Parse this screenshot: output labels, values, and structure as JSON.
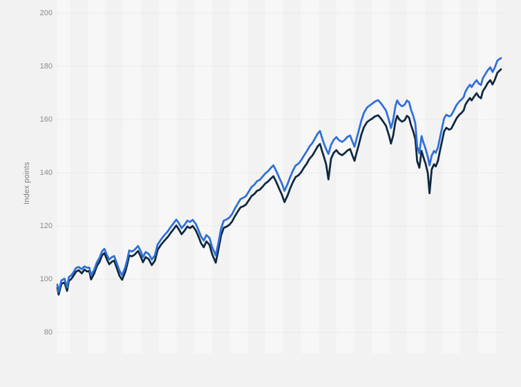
{
  "colors": {
    "background": "#f2f2f2",
    "stripe": "#f7f7f7",
    "gridline": "#c8c8c8",
    "tick_text": "#8a8a8a",
    "axis_title_text": "#7d7d7d",
    "series_blue": "#2f70d8",
    "series_navy": "#0f2940"
  },
  "chart_data": {
    "type": "line",
    "title": "",
    "xlabel": "",
    "ylabel": "Index points",
    "ylim": [
      80,
      200
    ],
    "yticks": [
      200,
      180,
      160,
      140,
      120,
      100,
      80
    ],
    "grid": "horizontal-dotted",
    "legend": "none",
    "x_axis_labels_visible": false,
    "x_range": [
      0,
      1
    ],
    "plot_background": "alternating-vertical-month-stripes",
    "series": [
      {
        "name": "series-1",
        "color": "#2f70d8",
        "end_value": 183.1,
        "start_value": 98.0
      },
      {
        "name": "series-2",
        "color": "#0f2940",
        "end_value": 178.9,
        "start_value": 96.8
      }
    ],
    "points": [
      [
        0.0,
        98.0,
        96.8
      ],
      [
        0.003,
        95.3,
        94.2
      ],
      [
        0.009,
        99.5,
        98.2
      ],
      [
        0.016,
        100.2,
        98.8
      ],
      [
        0.022,
        97.0,
        95.6
      ],
      [
        0.026,
        100.8,
        99.4
      ],
      [
        0.031,
        101.4,
        100.0
      ],
      [
        0.036,
        102.5,
        101.2
      ],
      [
        0.042,
        104.2,
        102.8
      ],
      [
        0.048,
        104.6,
        103.4
      ],
      [
        0.055,
        103.8,
        102.2
      ],
      [
        0.061,
        104.8,
        103.6
      ],
      [
        0.067,
        104.3,
        102.9
      ],
      [
        0.072,
        104.4,
        103.1
      ],
      [
        0.076,
        101.5,
        99.9
      ],
      [
        0.083,
        103.5,
        102.1
      ],
      [
        0.089,
        106.3,
        104.9
      ],
      [
        0.095,
        108.0,
        106.5
      ],
      [
        0.101,
        110.5,
        109.0
      ],
      [
        0.106,
        111.4,
        109.8
      ],
      [
        0.112,
        109.0,
        107.3
      ],
      [
        0.117,
        107.4,
        105.6
      ],
      [
        0.123,
        108.3,
        106.6
      ],
      [
        0.128,
        108.7,
        107.0
      ],
      [
        0.134,
        106.0,
        104.2
      ],
      [
        0.14,
        103.2,
        101.3
      ],
      [
        0.146,
        101.5,
        99.8
      ],
      [
        0.153,
        104.5,
        102.7
      ],
      [
        0.157,
        107.0,
        105.2
      ],
      [
        0.162,
        110.8,
        108.9
      ],
      [
        0.168,
        110.4,
        108.6
      ],
      [
        0.174,
        111.0,
        109.2
      ],
      [
        0.182,
        112.5,
        110.6
      ],
      [
        0.188,
        110.5,
        108.5
      ],
      [
        0.193,
        108.3,
        106.4
      ],
      [
        0.199,
        110.2,
        108.3
      ],
      [
        0.206,
        109.5,
        107.5
      ],
      [
        0.213,
        107.4,
        105.3
      ],
      [
        0.22,
        109.0,
        107.0
      ],
      [
        0.226,
        113.0,
        111.0
      ],
      [
        0.234,
        115.0,
        113.0
      ],
      [
        0.241,
        116.5,
        114.4
      ],
      [
        0.249,
        118.0,
        115.9
      ],
      [
        0.255,
        119.5,
        117.3
      ],
      [
        0.262,
        121.0,
        118.8
      ],
      [
        0.268,
        122.4,
        120.2
      ],
      [
        0.274,
        121.0,
        118.7
      ],
      [
        0.28,
        119.2,
        116.9
      ],
      [
        0.287,
        120.5,
        118.3
      ],
      [
        0.293,
        122.0,
        119.8
      ],
      [
        0.299,
        121.5,
        119.2
      ],
      [
        0.305,
        122.3,
        120.0
      ],
      [
        0.312,
        120.8,
        118.4
      ],
      [
        0.318,
        118.5,
        116.1
      ],
      [
        0.324,
        116.0,
        113.5
      ],
      [
        0.33,
        114.5,
        112.0
      ],
      [
        0.336,
        116.6,
        114.2
      ],
      [
        0.343,
        115.5,
        112.9
      ],
      [
        0.349,
        112.0,
        109.4
      ],
      [
        0.357,
        109.0,
        106.2
      ],
      [
        0.363,
        113.5,
        111.0
      ],
      [
        0.369,
        119.0,
        116.4
      ],
      [
        0.375,
        122.0,
        119.3
      ],
      [
        0.382,
        122.5,
        119.8
      ],
      [
        0.388,
        123.2,
        120.5
      ],
      [
        0.394,
        124.5,
        121.7
      ],
      [
        0.4,
        126.5,
        123.6
      ],
      [
        0.407,
        128.5,
        125.5
      ],
      [
        0.413,
        130.1,
        127.0
      ],
      [
        0.419,
        130.6,
        127.4
      ],
      [
        0.425,
        131.2,
        128.0
      ],
      [
        0.431,
        132.8,
        129.5
      ],
      [
        0.438,
        134.7,
        131.3
      ],
      [
        0.444,
        135.5,
        132.0
      ],
      [
        0.45,
        136.8,
        133.2
      ],
      [
        0.456,
        137.3,
        133.6
      ],
      [
        0.463,
        138.6,
        134.8
      ],
      [
        0.469,
        139.8,
        136.0
      ],
      [
        0.475,
        140.6,
        136.7
      ],
      [
        0.481,
        141.8,
        137.8
      ],
      [
        0.487,
        142.8,
        138.7
      ],
      [
        0.494,
        140.5,
        136.4
      ],
      [
        0.5,
        138.2,
        134.0
      ],
      [
        0.506,
        136.0,
        131.8
      ],
      [
        0.512,
        133.2,
        129.0
      ],
      [
        0.519,
        135.8,
        131.5
      ],
      [
        0.525,
        138.5,
        134.2
      ],
      [
        0.531,
        140.8,
        136.5
      ],
      [
        0.537,
        142.7,
        138.4
      ],
      [
        0.544,
        143.5,
        139.1
      ],
      [
        0.55,
        144.8,
        140.3
      ],
      [
        0.556,
        146.5,
        142.0
      ],
      [
        0.562,
        148.0,
        143.4
      ],
      [
        0.568,
        149.8,
        145.2
      ],
      [
        0.575,
        151.2,
        146.5
      ],
      [
        0.581,
        153.0,
        148.2
      ],
      [
        0.587,
        154.8,
        150.0
      ],
      [
        0.592,
        155.7,
        150.8
      ],
      [
        0.596,
        153.5,
        148.6
      ],
      [
        0.601,
        151.0,
        146.0
      ],
      [
        0.606,
        148.8,
        143.0
      ],
      [
        0.611,
        147.1,
        137.5
      ],
      [
        0.617,
        150.5,
        145.3
      ],
      [
        0.623,
        152.4,
        147.5
      ],
      [
        0.629,
        153.4,
        148.5
      ],
      [
        0.635,
        152.2,
        147.2
      ],
      [
        0.642,
        151.6,
        146.6
      ],
      [
        0.648,
        152.4,
        147.4
      ],
      [
        0.654,
        153.5,
        148.4
      ],
      [
        0.66,
        154.0,
        148.9
      ],
      [
        0.665,
        151.8,
        146.6
      ],
      [
        0.67,
        149.8,
        144.5
      ],
      [
        0.674,
        152.5,
        147.2
      ],
      [
        0.679,
        155.5,
        150.2
      ],
      [
        0.685,
        159.5,
        154.2
      ],
      [
        0.691,
        162.5,
        157.1
      ],
      [
        0.698,
        164.5,
        159.0
      ],
      [
        0.704,
        165.3,
        159.8
      ],
      [
        0.71,
        166.0,
        160.4
      ],
      [
        0.716,
        166.8,
        161.2
      ],
      [
        0.723,
        167.3,
        161.6
      ],
      [
        0.729,
        166.2,
        160.5
      ],
      [
        0.735,
        164.8,
        159.1
      ],
      [
        0.741,
        163.3,
        157.6
      ],
      [
        0.748,
        159.5,
        153.8
      ],
      [
        0.752,
        156.8,
        151.0
      ],
      [
        0.757,
        159.8,
        154.0
      ],
      [
        0.762,
        165.0,
        159.2
      ],
      [
        0.766,
        167.2,
        161.4
      ],
      [
        0.771,
        165.8,
        160.0
      ],
      [
        0.777,
        165.0,
        159.2
      ],
      [
        0.783,
        165.6,
        159.8
      ],
      [
        0.788,
        167.2,
        161.4
      ],
      [
        0.793,
        166.5,
        160.7
      ],
      [
        0.797,
        163.8,
        158.0
      ],
      [
        0.802,
        161.5,
        155.7
      ],
      [
        0.807,
        158.5,
        152.6
      ],
      [
        0.811,
        150.0,
        144.4
      ],
      [
        0.816,
        147.3,
        141.9
      ],
      [
        0.821,
        153.8,
        148.2
      ],
      [
        0.825,
        151.5,
        146.0
      ],
      [
        0.83,
        149.0,
        143.4
      ],
      [
        0.835,
        146.0,
        140.0
      ],
      [
        0.839,
        142.8,
        132.3
      ],
      [
        0.844,
        146.5,
        141.3
      ],
      [
        0.849,
        148.2,
        143.2
      ],
      [
        0.853,
        147.5,
        142.4
      ],
      [
        0.858,
        149.5,
        144.5
      ],
      [
        0.863,
        153.5,
        148.6
      ],
      [
        0.868,
        157.5,
        152.6
      ],
      [
        0.872,
        160.5,
        155.6
      ],
      [
        0.877,
        161.8,
        156.9
      ],
      [
        0.883,
        161.2,
        156.2
      ],
      [
        0.888,
        161.6,
        156.6
      ],
      [
        0.894,
        163.5,
        158.5
      ],
      [
        0.9,
        165.5,
        160.5
      ],
      [
        0.906,
        166.8,
        161.8
      ],
      [
        0.911,
        167.5,
        162.5
      ],
      [
        0.916,
        168.5,
        163.5
      ],
      [
        0.92,
        170.5,
        165.6
      ],
      [
        0.925,
        172.0,
        167.0
      ],
      [
        0.93,
        173.1,
        168.1
      ],
      [
        0.934,
        172.2,
        167.2
      ],
      [
        0.939,
        173.5,
        168.5
      ],
      [
        0.945,
        174.8,
        169.9
      ],
      [
        0.95,
        173.5,
        168.6
      ],
      [
        0.955,
        173.0,
        168.0
      ],
      [
        0.959,
        175.5,
        170.6
      ],
      [
        0.966,
        177.4,
        172.5
      ],
      [
        0.97,
        178.5,
        173.7
      ],
      [
        0.976,
        179.6,
        174.8
      ],
      [
        0.981,
        177.9,
        173.2
      ],
      [
        0.986,
        179.5,
        174.9
      ],
      [
        0.992,
        182.2,
        177.6
      ],
      [
        1.0,
        183.1,
        178.9
      ]
    ]
  }
}
